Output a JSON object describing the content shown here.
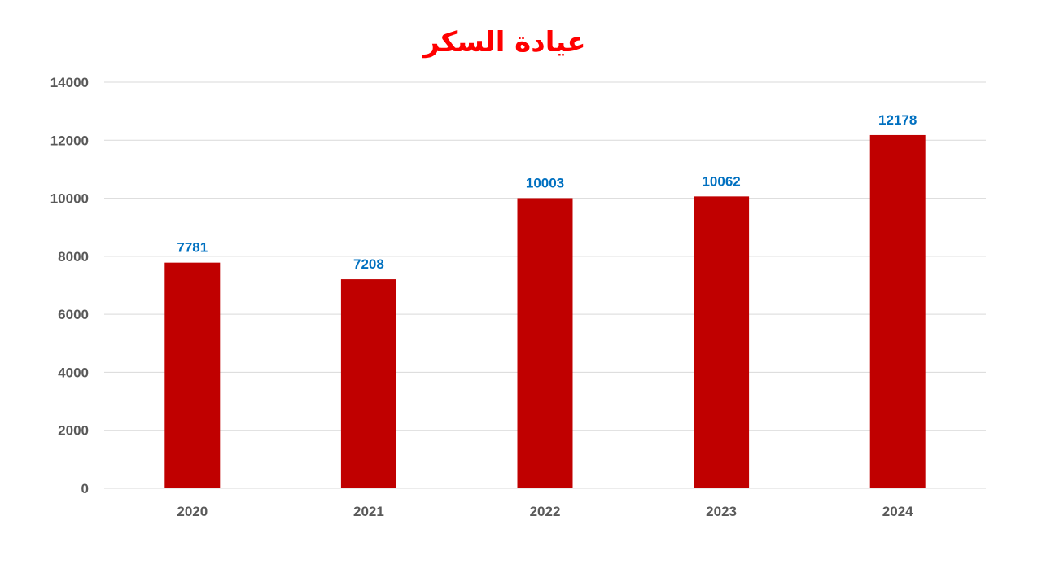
{
  "colors": {
    "bar": "#c00000",
    "title": "#ff0000",
    "data_label": "#0070c0",
    "tick_label": "#595959",
    "gridline": "#d9d9d9"
  },
  "chart_data": {
    "type": "bar",
    "title": "عيادة السكر",
    "xlabel": "",
    "ylabel": "",
    "categories": [
      "2020",
      "2021",
      "2022",
      "2023",
      "2024"
    ],
    "series": [
      {
        "values": [
          7781,
          7208,
          10003,
          10062,
          12178
        ]
      }
    ],
    "ylim": [
      0,
      14000
    ],
    "yticks": [
      0,
      2000,
      4000,
      6000,
      8000,
      10000,
      12000,
      14000
    ],
    "grid": true,
    "legend": "none",
    "data_labels": true
  }
}
